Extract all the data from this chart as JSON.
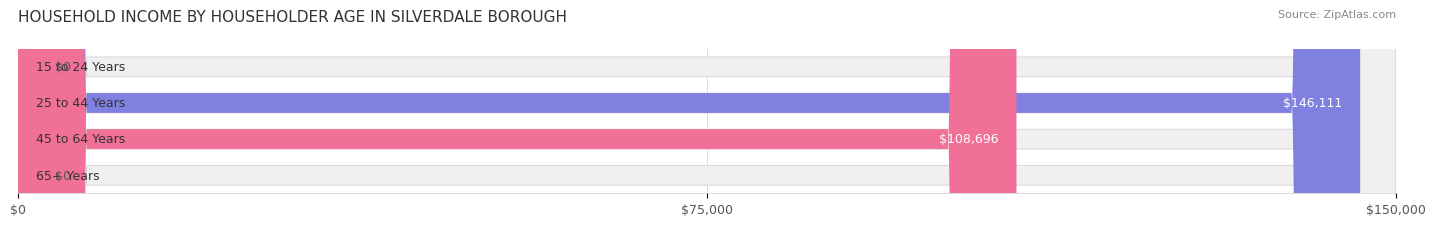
{
  "title": "HOUSEHOLD INCOME BY HOUSEHOLDER AGE IN SILVERDALE BOROUGH",
  "source": "Source: ZipAtlas.com",
  "categories": [
    "15 to 24 Years",
    "25 to 44 Years",
    "45 to 64 Years",
    "65+ Years"
  ],
  "values": [
    0,
    146111,
    108696,
    0
  ],
  "bar_colors": [
    "#5fd3d0",
    "#8080e0",
    "#f07098",
    "#f5c89a"
  ],
  "label_colors": [
    "#555555",
    "#ffffff",
    "#ffffff",
    "#555555"
  ],
  "bar_bg_color": "#f0f0f0",
  "xlim": [
    0,
    150000
  ],
  "xticks": [
    0,
    75000,
    150000
  ],
  "xtick_labels": [
    "$0",
    "$75,000",
    "$150,000"
  ],
  "value_labels": [
    "$0",
    "$146,111",
    "$108,696",
    "$0"
  ],
  "bar_height": 0.55,
  "background_color": "#ffffff",
  "title_fontsize": 11,
  "tick_fontsize": 9,
  "label_fontsize": 9,
  "value_fontsize": 9
}
